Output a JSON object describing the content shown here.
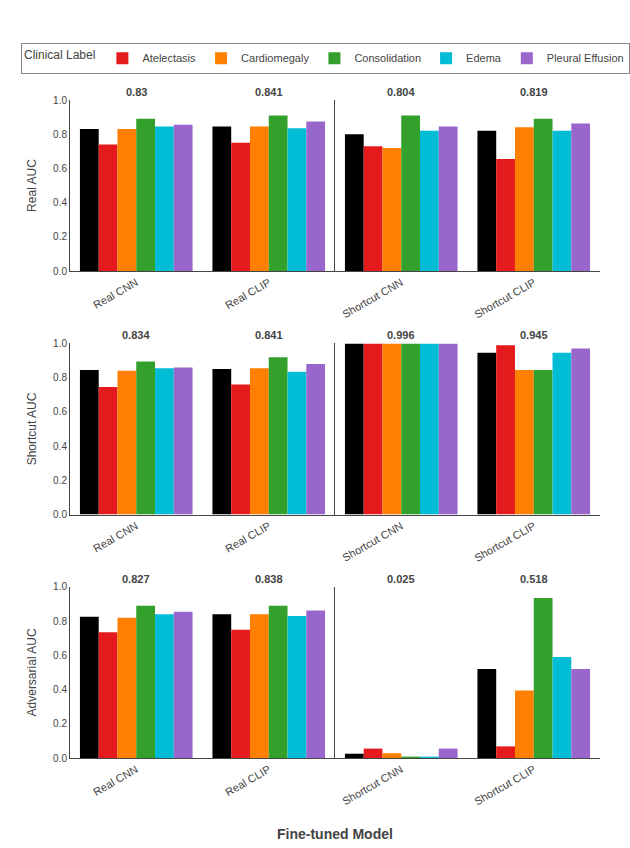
{
  "chart_data": [
    {
      "type": "bar",
      "categories": [
        "Real CNN",
        "Real CLIP"
      ],
      "series": [
        {
          "color": "#000000",
          "values": [
            0.83,
            0.845
          ]
        },
        {
          "name": "Atelectasis",
          "color": "#e41a1c",
          "values": [
            0.74,
            0.75
          ]
        },
        {
          "name": "Cardiomegaly",
          "color": "#ff7f00",
          "values": [
            0.83,
            0.845
          ]
        },
        {
          "name": "Consolidation",
          "color": "#33a02c",
          "values": [
            0.89,
            0.91
          ]
        },
        {
          "name": "Edema",
          "color": "#00bcd4",
          "values": [
            0.845,
            0.835
          ]
        },
        {
          "name": "Pleural Effusion",
          "color": "#9966cc",
          "values": [
            0.855,
            0.875
          ]
        }
      ],
      "ylabel": "Real AUC",
      "ylim": [
        0,
        1.0
      ],
      "yticks": [
        {
          "value": 0,
          "label": "0.0"
        },
        0.2,
        0.4,
        0.6,
        0.8,
        {
          "value": 1.0,
          "label": "1.0"
        }
      ],
      "grid": false,
      "annotations": [
        {
          "x": "Real CNN",
          "text": "0.83"
        },
        {
          "x": "Real CLIP",
          "text": "0.841"
        }
      ],
      "legend": "top",
      "legend_title": "Clinical Label"
    },
    {
      "type": "bar",
      "categories": [
        "Shortcut CNN",
        "Shortcut CLIP"
      ],
      "series": [
        {
          "color": "#000000",
          "values": [
            0.8,
            0.82
          ]
        },
        {
          "name": "Atelectasis",
          "color": "#e41a1c",
          "values": [
            0.73,
            0.655
          ]
        },
        {
          "name": "Cardiomegaly",
          "color": "#ff7f00",
          "values": [
            0.72,
            0.84
          ]
        },
        {
          "name": "Consolidation",
          "color": "#33a02c",
          "values": [
            0.91,
            0.89
          ]
        },
        {
          "name": "Edema",
          "color": "#00bcd4",
          "values": [
            0.82,
            0.82
          ]
        },
        {
          "name": "Pleural Effusion",
          "color": "#9966cc",
          "values": [
            0.845,
            0.863
          ]
        }
      ],
      "ylim": [
        0,
        1.0
      ],
      "yticks": [
        {
          "value": 0,
          "label": "0.0"
        },
        0.2,
        0.4,
        0.6,
        0.8,
        {
          "value": 1.0,
          "label": "1.0"
        }
      ],
      "grid": false,
      "tick_labels": "x",
      "annotations": [
        {
          "x": "Shortcut CNN",
          "text": "0.804"
        },
        {
          "x": "Shortcut CLIP",
          "text": "0.819"
        }
      ]
    },
    {
      "type": "bar",
      "categories": [
        "Real CNN",
        "Real CLIP"
      ],
      "series": [
        {
          "color": "#000000",
          "values": [
            0.845,
            0.85
          ]
        },
        {
          "name": "Atelectasis",
          "color": "#e41a1c",
          "values": [
            0.745,
            0.76
          ]
        },
        {
          "name": "Cardiomegaly",
          "color": "#ff7f00",
          "values": [
            0.84,
            0.855
          ]
        },
        {
          "name": "Consolidation",
          "color": "#33a02c",
          "values": [
            0.895,
            0.92
          ]
        },
        {
          "name": "Edema",
          "color": "#00bcd4",
          "values": [
            0.855,
            0.835
          ]
        },
        {
          "name": "Pleural Effusion",
          "color": "#9966cc",
          "values": [
            0.86,
            0.88
          ]
        }
      ],
      "ylabel": "Shortcut AUC",
      "ylim": [
        0,
        1.0
      ],
      "yticks": [
        {
          "value": 0,
          "label": "0.0"
        },
        0.2,
        0.4,
        0.6,
        0.8,
        {
          "value": 1.0,
          "label": "1.0"
        }
      ],
      "grid": false,
      "annotations": [
        {
          "x": "Real CNN",
          "text": "0.834"
        },
        {
          "x": "Real CLIP",
          "text": "0.841"
        }
      ]
    },
    {
      "type": "bar",
      "categories": [
        "Shortcut CNN",
        "Shortcut CLIP"
      ],
      "series": [
        {
          "color": "#000000",
          "values": [
            1.0,
            0.945
          ]
        },
        {
          "name": "Atelectasis",
          "color": "#e41a1c",
          "values": [
            1.0,
            0.99
          ]
        },
        {
          "name": "Cardiomegaly",
          "color": "#ff7f00",
          "values": [
            1.0,
            0.845
          ]
        },
        {
          "name": "Consolidation",
          "color": "#33a02c",
          "values": [
            1.0,
            0.845
          ]
        },
        {
          "name": "Edema",
          "color": "#00bcd4",
          "values": [
            1.0,
            0.945
          ]
        },
        {
          "name": "Pleural Effusion",
          "color": "#9966cc",
          "values": [
            1.0,
            0.97
          ]
        }
      ],
      "ylim": [
        0,
        1.0
      ],
      "yticks": [
        {
          "value": 0,
          "label": "0.0"
        },
        0.2,
        0.4,
        0.6,
        0.8,
        {
          "value": 1.0,
          "label": "1.0"
        }
      ],
      "grid": false,
      "tick_labels": "x",
      "annotations": [
        {
          "x": "Shortcut CNN",
          "text": "0.996"
        },
        {
          "x": "Shortcut CLIP",
          "text": "0.945"
        }
      ]
    },
    {
      "type": "bar",
      "categories": [
        "Real CNN",
        "Real CLIP"
      ],
      "series": [
        {
          "color": "#000000",
          "values": [
            0.825,
            0.84
          ]
        },
        {
          "name": "Atelectasis",
          "color": "#e41a1c",
          "values": [
            0.735,
            0.75
          ]
        },
        {
          "name": "Cardiomegaly",
          "color": "#ff7f00",
          "values": [
            0.82,
            0.84
          ]
        },
        {
          "name": "Consolidation",
          "color": "#33a02c",
          "values": [
            0.89,
            0.89
          ]
        },
        {
          "name": "Edema",
          "color": "#00bcd4",
          "values": [
            0.84,
            0.83
          ]
        },
        {
          "name": "Pleural Effusion",
          "color": "#9966cc",
          "values": [
            0.855,
            0.862
          ]
        }
      ],
      "ylabel": "Adversarial AUC",
      "xlabel": "Fine-tuned Model",
      "ylim": [
        0,
        1.0
      ],
      "yticks": [
        {
          "value": 0,
          "label": "0.0"
        },
        0.2,
        0.4,
        0.6,
        0.8,
        {
          "value": 1.0,
          "label": "1.0"
        }
      ],
      "grid": false,
      "annotations": [
        {
          "x": "Real CNN",
          "text": "0.827"
        },
        {
          "x": "Real CLIP",
          "text": "0.838"
        }
      ]
    },
    {
      "type": "bar",
      "categories": [
        "Shortcut CNN",
        "Shortcut CLIP"
      ],
      "series": [
        {
          "color": "#000000",
          "values": [
            0.025,
            0.52
          ]
        },
        {
          "name": "Atelectasis",
          "color": "#e41a1c",
          "values": [
            0.055,
            0.068
          ]
        },
        {
          "name": "Cardiomegaly",
          "color": "#ff7f00",
          "values": [
            0.028,
            0.395
          ]
        },
        {
          "name": "Consolidation",
          "color": "#33a02c",
          "values": [
            0.008,
            0.935
          ]
        },
        {
          "name": "Edema",
          "color": "#00bcd4",
          "values": [
            0.008,
            0.59
          ]
        },
        {
          "name": "Pleural Effusion",
          "color": "#9966cc",
          "values": [
            0.055,
            0.52
          ]
        }
      ],
      "ylim": [
        0,
        1.0
      ],
      "yticks": [
        {
          "value": 0,
          "label": "0.0"
        },
        0.2,
        0.4,
        0.6,
        0.8,
        {
          "value": 1.0,
          "label": "1.0"
        }
      ],
      "grid": false,
      "tick_labels": "x",
      "annotations": [
        {
          "x": "Shortcut CNN",
          "text": "0.025"
        },
        {
          "x": "Shortcut CLIP",
          "text": "0.518"
        }
      ]
    }
  ]
}
